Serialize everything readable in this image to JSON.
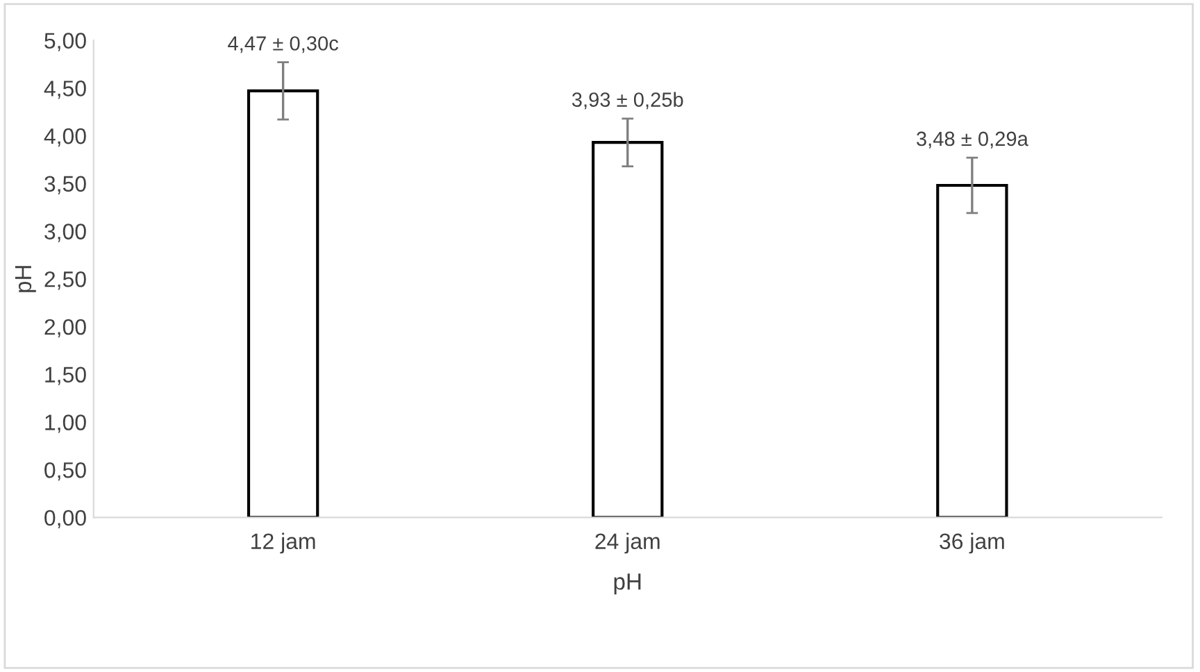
{
  "chart_data": {
    "type": "bar",
    "xlabel": "pH",
    "ylabel": "pH",
    "categories": [
      "12 jam",
      "24 jam",
      "36 jam"
    ],
    "values": [
      4.47,
      3.93,
      3.48
    ],
    "errors": [
      0.3,
      0.25,
      0.29
    ],
    "value_labels": [
      "4,47 ± 0,30c",
      "3,93 ± 0,25b",
      "3,48 ± 0,29a"
    ],
    "color": "#ffffff",
    "ylim": [
      0,
      5
    ],
    "yticks": [
      {
        "value": 0,
        "label": "0,00"
      },
      {
        "value": 0.5,
        "label": "0,50"
      },
      {
        "value": 1,
        "label": "1,00"
      },
      {
        "value": 1.5,
        "label": "1,50"
      },
      {
        "value": 2,
        "label": "2,00"
      },
      {
        "value": 2.5,
        "label": "2,50"
      },
      {
        "value": 3,
        "label": "3,00"
      },
      {
        "value": 3.5,
        "label": "3,50"
      },
      {
        "value": 4,
        "label": "4,00"
      },
      {
        "value": 4.5,
        "label": "4,50"
      },
      {
        "value": 5,
        "label": "5,00"
      }
    ],
    "grid": false,
    "legend": false
  }
}
